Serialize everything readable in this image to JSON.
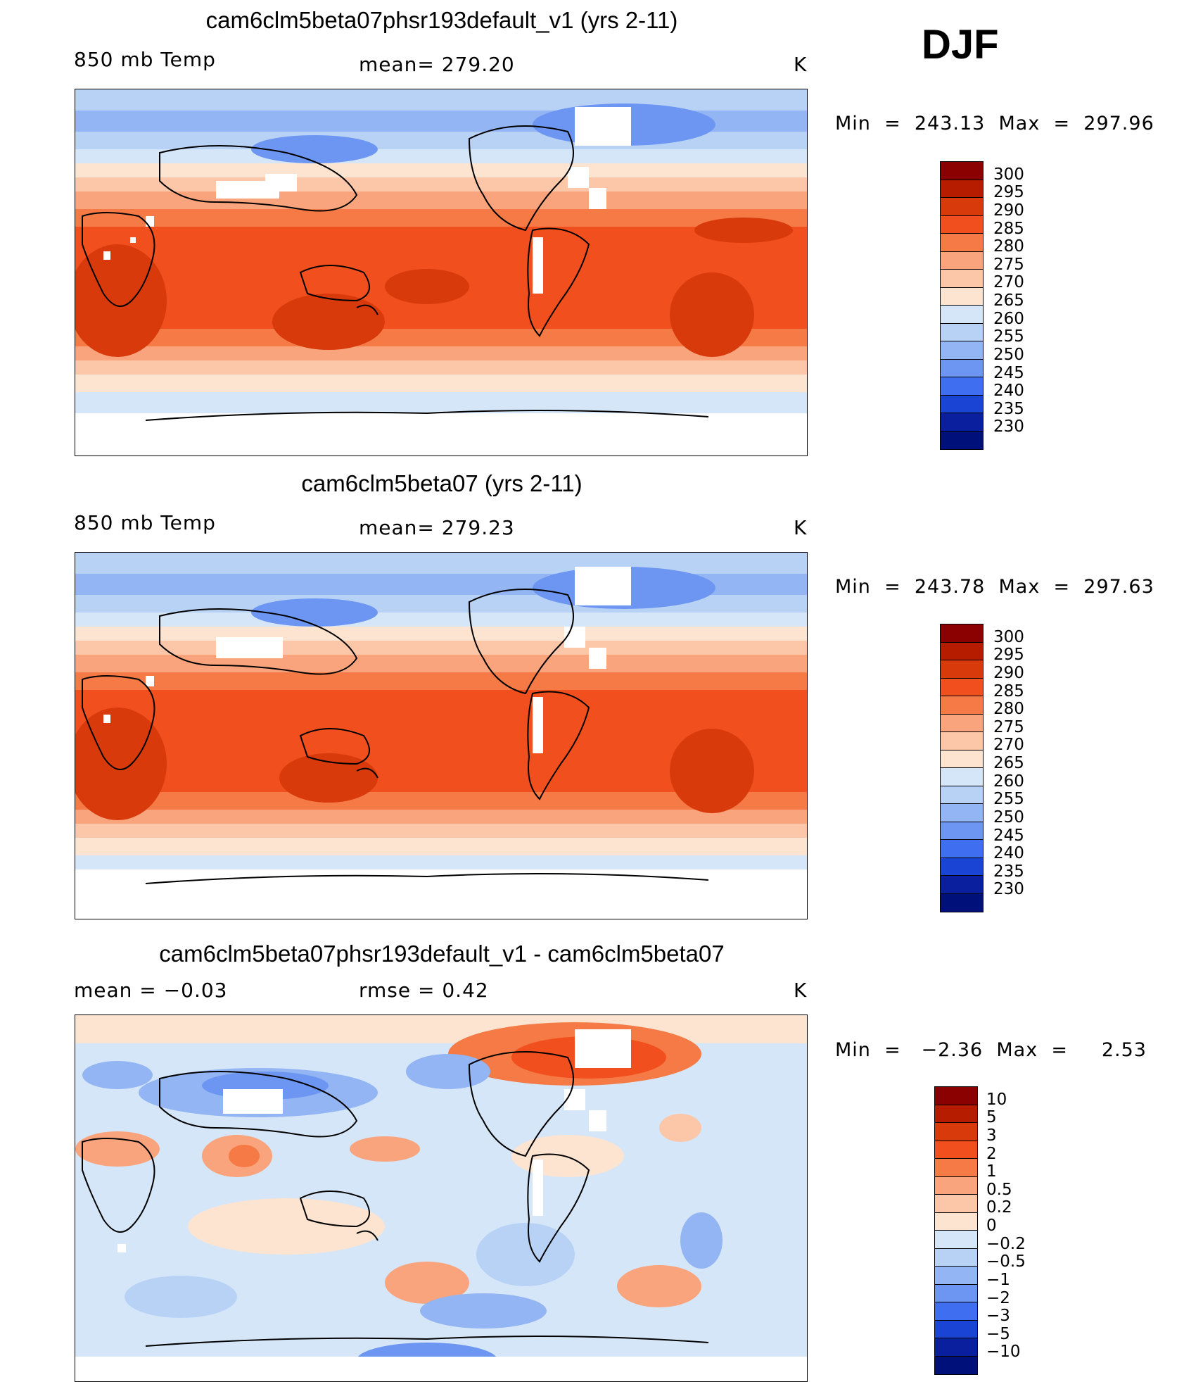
{
  "season": "DJF",
  "panels": [
    {
      "title": "cam6clm5beta07phsr193default_v1 (yrs 2-11)",
      "left_label": "850 mb Temp",
      "center_label": "mean= 279.20",
      "units": "K",
      "minmax": "Min  =  243.13  Max  =  297.96",
      "colorbar_labels": [
        "300",
        "295",
        "290",
        "285",
        "280",
        "275",
        "270",
        "265",
        "260",
        "255",
        "250",
        "245",
        "240",
        "235",
        "230"
      ],
      "colors": [
        "#8b0000",
        "#b51c00",
        "#d93a0b",
        "#f14f1d",
        "#f57a46",
        "#f9a47c",
        "#fbc7a8",
        "#fde4d0",
        "#d5e6f8",
        "#b8d2f6",
        "#93b5f4",
        "#6c96f2",
        "#3f6ef0",
        "#1a44d4",
        "#0a1f9e",
        "#00107a"
      ]
    },
    {
      "title": "cam6clm5beta07 (yrs 2-11)",
      "left_label": "850 mb Temp",
      "center_label": "mean= 279.23",
      "units": "K",
      "minmax": "Min  =  243.78  Max  =  297.63",
      "colorbar_labels": [
        "300",
        "295",
        "290",
        "285",
        "280",
        "275",
        "270",
        "265",
        "260",
        "255",
        "250",
        "245",
        "240",
        "235",
        "230"
      ],
      "colors": [
        "#8b0000",
        "#b51c00",
        "#d93a0b",
        "#f14f1d",
        "#f57a46",
        "#f9a47c",
        "#fbc7a8",
        "#fde4d0",
        "#d5e6f8",
        "#b8d2f6",
        "#93b5f4",
        "#6c96f2",
        "#3f6ef0",
        "#1a44d4",
        "#0a1f9e",
        "#00107a"
      ]
    },
    {
      "title": "cam6clm5beta07phsr193default_v1 - cam6clm5beta07",
      "left_label": "mean =   −0.03",
      "center_label": "rmse =    0.42",
      "units": "K",
      "minmax": "Min  =   −2.36  Max  =     2.53",
      "colorbar_labels": [
        "10",
        "5",
        "3",
        "2",
        "1",
        "0.5",
        "0.2",
        "0",
        "−0.2",
        "−0.5",
        "−1",
        "−2",
        "−3",
        "−5",
        "−10"
      ],
      "colors": [
        "#8b0000",
        "#b51c00",
        "#d93a0b",
        "#f14f1d",
        "#f57a46",
        "#f9a47c",
        "#fbc7a8",
        "#fde4d0",
        "#d5e6f8",
        "#b8d2f6",
        "#93b5f4",
        "#6c96f2",
        "#3f6ef0",
        "#1a44d4",
        "#0a1f9e",
        "#00107a"
      ]
    }
  ]
}
